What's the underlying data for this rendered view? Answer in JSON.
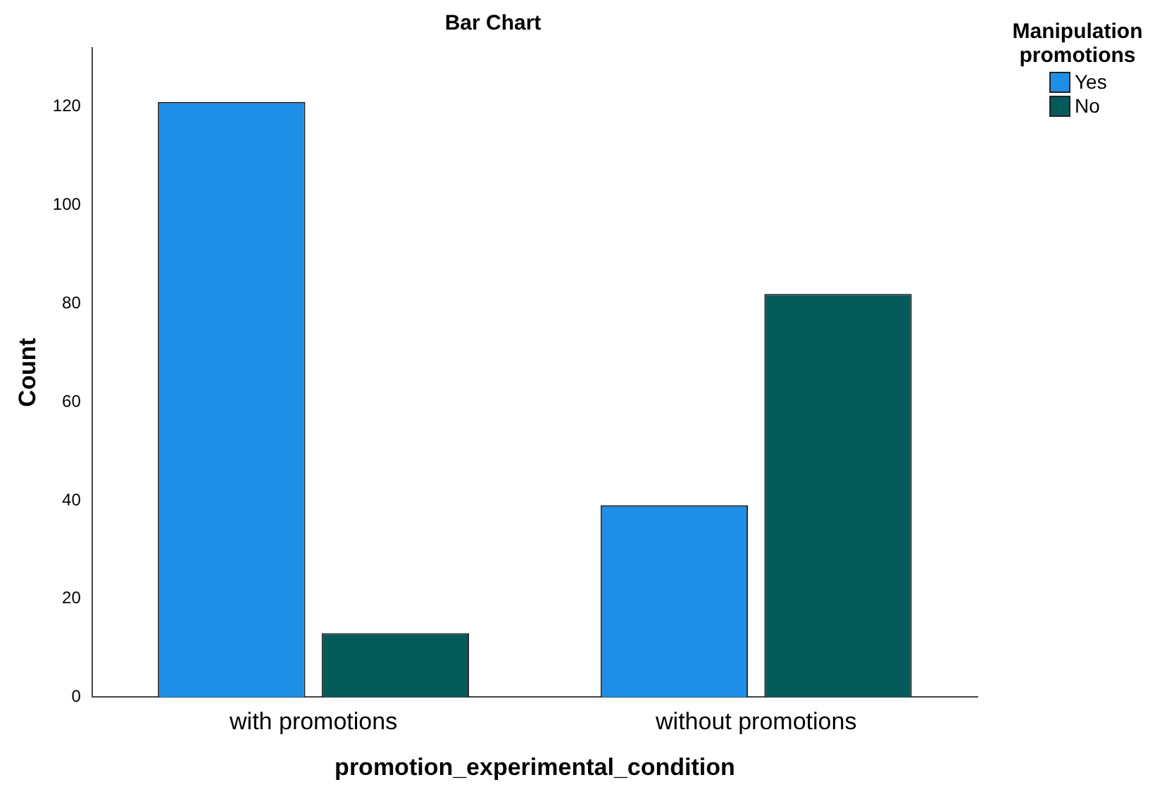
{
  "chart_data": {
    "type": "bar",
    "title": "Bar Chart",
    "xlabel": "promotion_experimental_condition",
    "ylabel": "Count",
    "legend_title": "Manipulation promotions",
    "categories": [
      "with promotions",
      "without promotions"
    ],
    "series": [
      {
        "name": "Yes",
        "color": "#1e8fe6",
        "values": [
          121,
          39
        ]
      },
      {
        "name": "No",
        "color": "#055a5a",
        "values": [
          13,
          82
        ]
      }
    ],
    "ylim": [
      0,
      132
    ],
    "yticks": [
      0,
      20,
      40,
      60,
      80,
      100,
      120
    ],
    "grid": false,
    "legend": "top right"
  }
}
